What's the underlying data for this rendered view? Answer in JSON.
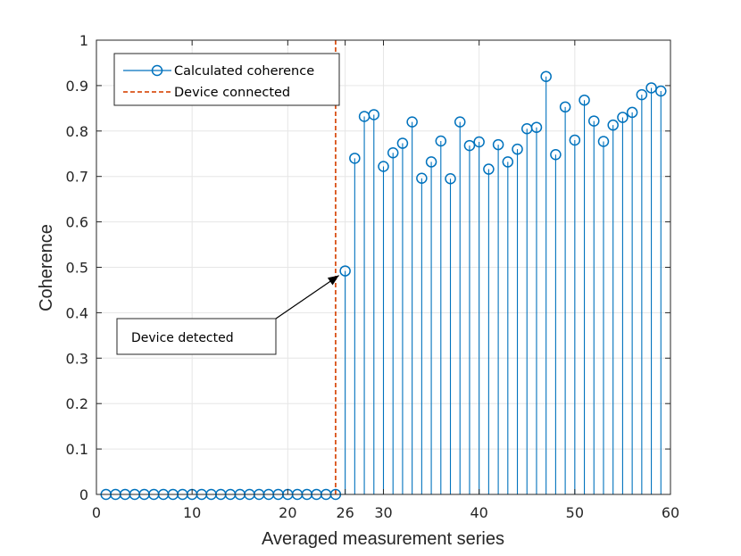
{
  "chart_data": {
    "type": "stem",
    "title": "",
    "xlabel": "Averaged measurement series",
    "ylabel": "Coherence",
    "xlim": [
      0,
      60
    ],
    "ylim": [
      0,
      1
    ],
    "grid": true,
    "xticks": [
      0,
      10,
      20,
      26,
      30,
      40,
      50,
      60
    ],
    "xtick_labels": [
      "0",
      "10",
      "20",
      "26",
      "30",
      "40",
      "50",
      "60"
    ],
    "highlight_xtick": 26,
    "yticks": [
      0,
      0.1,
      0.2,
      0.3,
      0.4,
      0.5,
      0.6,
      0.7,
      0.8,
      0.9,
      1
    ],
    "ytick_labels": [
      "0",
      "0.1",
      "0.2",
      "0.3",
      "0.4",
      "0.5",
      "0.6",
      "0.7",
      "0.8",
      "0.9",
      "1"
    ],
    "series": [
      {
        "name": "Calculated coherence",
        "color": "#0072BD",
        "marker": "circle",
        "x": [
          1,
          2,
          3,
          4,
          5,
          6,
          7,
          8,
          9,
          10,
          11,
          12,
          13,
          14,
          15,
          16,
          17,
          18,
          19,
          20,
          21,
          22,
          23,
          24,
          25,
          26,
          27,
          28,
          29,
          30,
          31,
          32,
          33,
          34,
          35,
          36,
          37,
          38,
          39,
          40,
          41,
          42,
          43,
          44,
          45,
          46,
          47,
          48,
          49,
          50,
          51,
          52,
          53,
          54,
          55,
          56,
          57,
          58,
          59
        ],
        "y": [
          0,
          0,
          0,
          0,
          0,
          0,
          0,
          0,
          0,
          0,
          0,
          0,
          0,
          0,
          0,
          0,
          0,
          0,
          0,
          0,
          0,
          0,
          0,
          0,
          0,
          0.492,
          0.74,
          0.832,
          0.836,
          0.722,
          0.752,
          0.773,
          0.82,
          0.696,
          0.732,
          0.778,
          0.695,
          0.82,
          0.768,
          0.776,
          0.716,
          0.77,
          0.732,
          0.76,
          0.805,
          0.808,
          0.92,
          0.748,
          0.853,
          0.78,
          0.868,
          0.822,
          0.777,
          0.813,
          0.83,
          0.841,
          0.88,
          0.895,
          0.888
        ]
      }
    ],
    "vline": {
      "name": "Device connected",
      "x": 25,
      "color": "#D95319",
      "style": "dashed"
    },
    "legend_position": "top-left",
    "annotation": {
      "text": "Device detected",
      "target_x": 26,
      "target_y": 0.492
    }
  }
}
